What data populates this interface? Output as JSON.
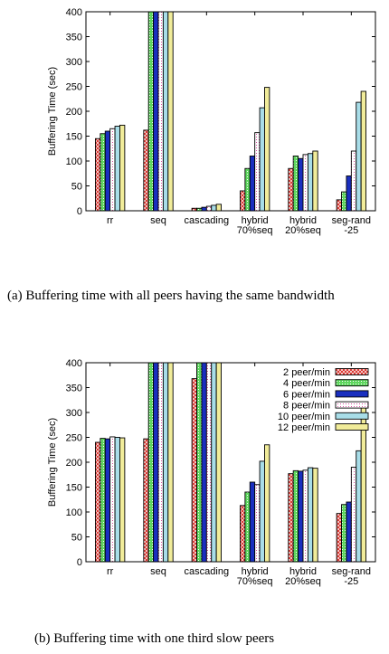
{
  "colors": {
    "series": [
      "#d9302a",
      "#5ed65e",
      "#1a2fbf",
      "#d84fa0",
      "#a8dde8",
      "#f1ec9a"
    ],
    "hatch": [
      "x",
      "o",
      "none",
      "o",
      "none",
      "none"
    ]
  },
  "chart_data": [
    {
      "type": "bar",
      "ylabel": "Buffering Time (sec)",
      "ylim": [
        0,
        400
      ],
      "yticks": [
        0,
        50,
        100,
        150,
        200,
        250,
        300,
        350,
        400
      ],
      "grid": false,
      "legend": "none",
      "categories": [
        [
          "rr"
        ],
        [
          "seq"
        ],
        [
          "cascading"
        ],
        [
          "hybrid",
          "70%seq"
        ],
        [
          "hybrid",
          "20%seq"
        ],
        [
          "seg-rand",
          "-25"
        ]
      ],
      "series": [
        {
          "values": [
            145,
            162,
            5,
            40,
            85,
            22
          ]
        },
        {
          "values": [
            155,
            400,
            5,
            85,
            110,
            38
          ]
        },
        {
          "values": [
            160,
            400,
            7,
            110,
            105,
            70
          ]
        },
        {
          "values": [
            165,
            400,
            9,
            157,
            113,
            120
          ]
        },
        {
          "values": [
            170,
            400,
            11,
            207,
            115,
            218
          ]
        },
        {
          "values": [
            172,
            400,
            13,
            248,
            120,
            240
          ]
        }
      ]
    },
    {
      "type": "bar",
      "ylabel": "Buffering Time (sec)",
      "ylim": [
        0,
        400
      ],
      "yticks": [
        0,
        50,
        100,
        150,
        200,
        250,
        300,
        350,
        400
      ],
      "grid": false,
      "legend": "top-right",
      "categories": [
        [
          "rr"
        ],
        [
          "seq"
        ],
        [
          "cascading"
        ],
        [
          "hybrid",
          "70%seq"
        ],
        [
          "hybrid",
          "20%seq"
        ],
        [
          "seg-rand",
          "-25"
        ]
      ],
      "series": [
        {
          "name": "2 peer/min",
          "values": [
            240,
            247,
            368,
            113,
            177,
            97
          ]
        },
        {
          "name": "4 peer/min",
          "values": [
            248,
            400,
            400,
            140,
            183,
            115
          ]
        },
        {
          "name": "6 peer/min",
          "values": [
            247,
            400,
            400,
            160,
            182,
            120
          ]
        },
        {
          "name": "8 peer/min",
          "values": [
            251,
            400,
            400,
            155,
            184,
            190
          ]
        },
        {
          "name": "10 peer/min",
          "values": [
            250,
            400,
            400,
            202,
            189,
            223
          ]
        },
        {
          "name": "12 peer/min",
          "values": [
            249,
            400,
            400,
            235,
            188,
            310
          ]
        }
      ]
    }
  ],
  "captions": {
    "a": "(a)  Buffering time with all peers having the same bandwidth",
    "b": "(b)  Buffering time with one third slow peers"
  }
}
